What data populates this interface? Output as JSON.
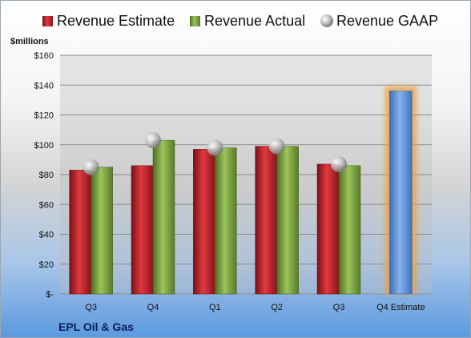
{
  "company": "EPL Oil & Gas",
  "chart_data": {
    "type": "bar",
    "ylabel": "$millions",
    "ylim": [
      0,
      160
    ],
    "yticks": [
      0,
      20,
      40,
      60,
      80,
      100,
      120,
      140,
      160
    ],
    "ytick_labels": [
      "$-",
      "$20",
      "$40",
      "$60",
      "$80",
      "$100",
      "$120",
      "$140",
      "$160"
    ],
    "categories": [
      "Q3",
      "Q4",
      "Q1",
      "Q2",
      "Q3",
      "Q4 Estimate"
    ],
    "legend_position": "top",
    "grid": true,
    "series": [
      {
        "name": "Revenue Estimate",
        "type": "bar",
        "color": "#c8262e",
        "values": [
          83,
          86,
          97,
          99,
          87,
          null
        ]
      },
      {
        "name": "Revenue Actual",
        "type": "bar",
        "color": "#80a845",
        "values": [
          85,
          103,
          98,
          99,
          86,
          null
        ]
      },
      {
        "name": "Revenue GAAP",
        "type": "marker",
        "color": "#b0b0b0",
        "values": [
          85,
          103,
          98,
          99,
          87,
          null
        ]
      },
      {
        "name": "",
        "type": "bar",
        "color": "#5b8fd6",
        "highlight": "#f0a040",
        "values": [
          null,
          null,
          null,
          null,
          null,
          136
        ]
      }
    ]
  }
}
